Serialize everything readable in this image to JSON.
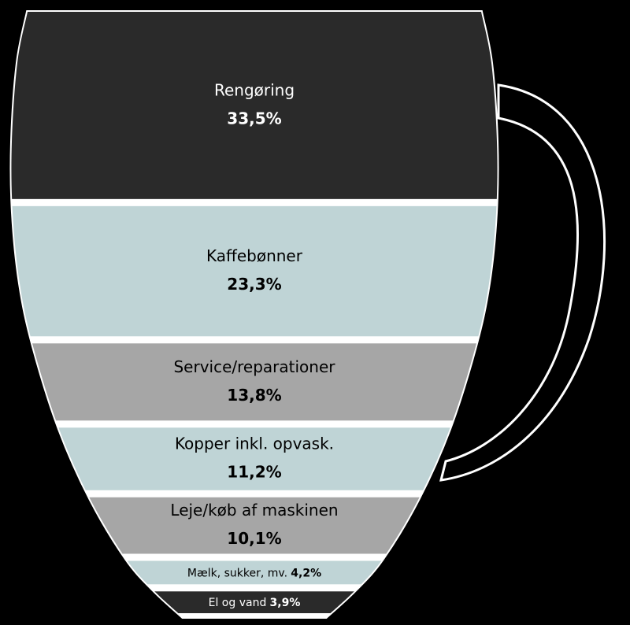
{
  "chart_data": {
    "type": "cup",
    "categories": [
      "Rengøring",
      "Kaffebønner",
      "Service/reparationer",
      "Kopper inkl. opvask.",
      "Leje/køb af maskinen",
      "Mælk, sukker, mv.",
      "El og vand"
    ],
    "values": [
      33.5,
      23.3,
      13.8,
      11.2,
      10.1,
      4.2,
      3.9
    ],
    "value_labels": [
      "33,5%",
      "23,3%",
      "13,8%",
      "11,2%",
      "10,1%",
      "4,2%",
      "3,9%"
    ],
    "colors": [
      "#2a2a2a",
      "#bfd4d6",
      "#a6a6a6",
      "#bfd4d6",
      "#a6a6a6",
      "#bfd4d6",
      "#2a2a2a"
    ]
  }
}
